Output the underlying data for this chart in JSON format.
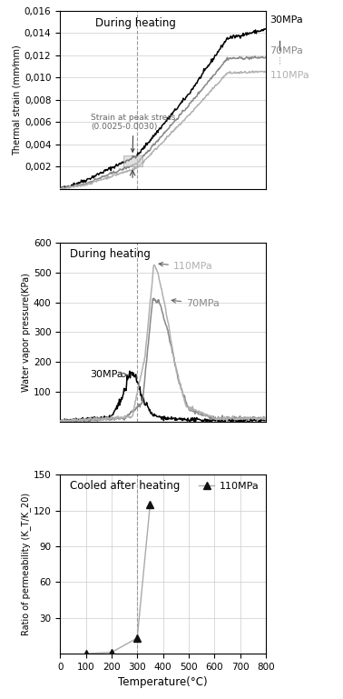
{
  "subplot1": {
    "title": "During heating",
    "ylabel": "Thermal strain (mm⁄mm)",
    "ylim": [
      0.0,
      0.016
    ],
    "ytick_vals": [
      0.002,
      0.004,
      0.006,
      0.008,
      0.01,
      0.012,
      0.014,
      0.016
    ],
    "ytick_labels": [
      "0,002",
      "0,004",
      "0,006",
      "0,008",
      "0,010",
      "0,012",
      "0,014",
      "0,016"
    ],
    "xlim": [
      0,
      800
    ]
  },
  "subplot2": {
    "title": "During heating",
    "ylabel": "Water vapor pressure(KPa)",
    "ylim": [
      0,
      600
    ],
    "ytick_vals": [
      100,
      200,
      300,
      400,
      500,
      600
    ],
    "ytick_labels": [
      "100",
      "200",
      "300",
      "400",
      "500",
      "600"
    ],
    "xlim": [
      0,
      800
    ]
  },
  "subplot3": {
    "title": "Cooled after heating",
    "ylabel": "Ratio of permeability (K_T/K_20)",
    "ylim": [
      0,
      150
    ],
    "ytick_vals": [
      30,
      60,
      90,
      120,
      150
    ],
    "ytick_labels": [
      "30",
      "60",
      "90",
      "120",
      "150"
    ],
    "xlim": [
      0,
      800
    ],
    "xtick_vals": [
      0,
      100,
      200,
      300,
      400,
      500,
      600,
      700,
      800
    ],
    "xtick_labels": [
      "0",
      "100",
      "200",
      "300",
      "400",
      "500",
      "600",
      "700",
      "800"
    ],
    "xlabel": "Temperature(°C)"
  },
  "dashed_x": 300,
  "col_30": "#000000",
  "col_70": "#888888",
  "col_110": "#b0b0b0",
  "background_color": "#ffffff",
  "grid_color": "#cccccc"
}
